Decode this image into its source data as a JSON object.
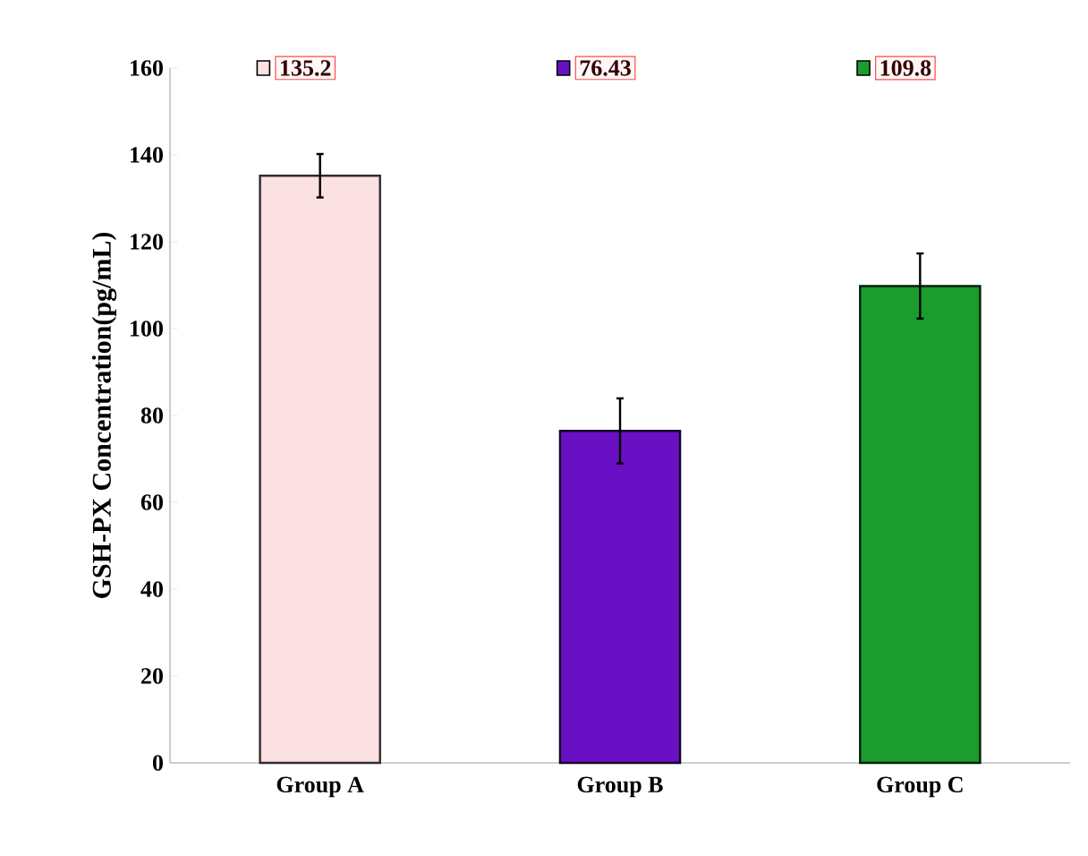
{
  "chart_data": {
    "type": "bar",
    "ylabel": "GSH-PX Concentration(pg/mL)",
    "categories": [
      "Group A",
      "Group B",
      "Group C"
    ],
    "values": [
      135.2,
      76.43,
      109.8
    ],
    "errors": [
      5,
      7.5,
      7.5
    ],
    "colors": [
      "#fbe1e1",
      "#6a10c4",
      "#1c9c2c"
    ],
    "ylim": [
      0,
      160
    ],
    "yticks": [
      0,
      20,
      40,
      60,
      80,
      100,
      120,
      140,
      160
    ],
    "annotations": [
      "135.2",
      "76.43",
      "109.8"
    ]
  }
}
